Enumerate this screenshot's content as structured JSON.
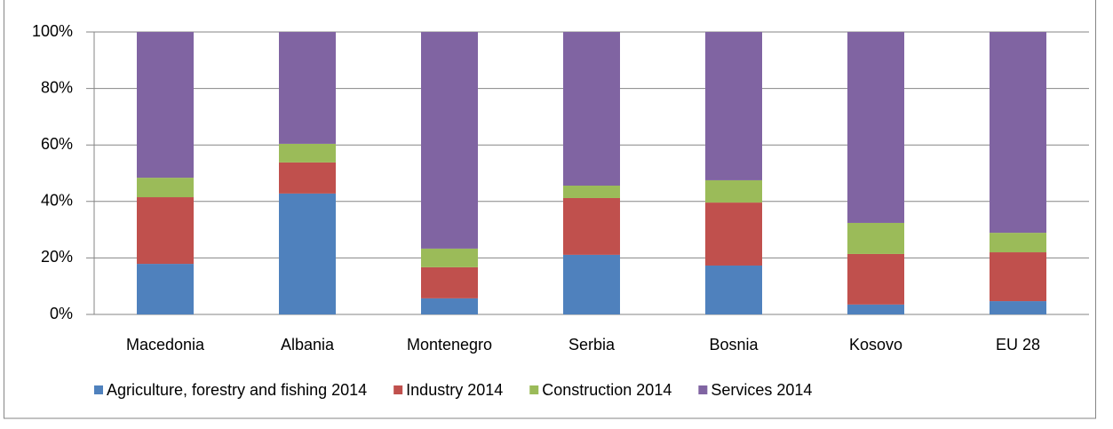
{
  "chart_data": {
    "type": "stacked_bar",
    "categories": [
      "Macedonia",
      "Albania",
      "Montenegro",
      "Serbia",
      "Bosnia",
      "Kosovo",
      "EU 28"
    ],
    "series": [
      {
        "name": "Agriculture, forestry and fishing 2014",
        "color": "#4f81bd",
        "values": [
          17.9,
          42.8,
          5.7,
          21.1,
          17.3,
          3.5,
          4.7
        ]
      },
      {
        "name": "Industry 2014",
        "color": "#c0504d",
        "values": [
          23.6,
          11.0,
          11.0,
          20.1,
          22.3,
          17.9,
          17.3
        ]
      },
      {
        "name": "Construction 2014",
        "color": "#9bbb59",
        "values": [
          6.9,
          6.6,
          6.6,
          4.4,
          7.9,
          11.0,
          6.9
        ]
      },
      {
        "name": "Services 2014",
        "color": "#8064a2",
        "values": [
          51.6,
          39.6,
          76.7,
          54.4,
          52.5,
          67.6,
          71.1
        ]
      }
    ],
    "ylim": [
      0,
      100
    ],
    "yticks": [
      {
        "value": 0,
        "label": "0%"
      },
      {
        "value": 20,
        "label": "20%"
      },
      {
        "value": 40,
        "label": "40%"
      },
      {
        "value": 60,
        "label": "60%"
      },
      {
        "value": 80,
        "label": "80%"
      },
      {
        "value": 100,
        "label": "100%"
      }
    ],
    "grid": true,
    "legend": "bottom"
  }
}
